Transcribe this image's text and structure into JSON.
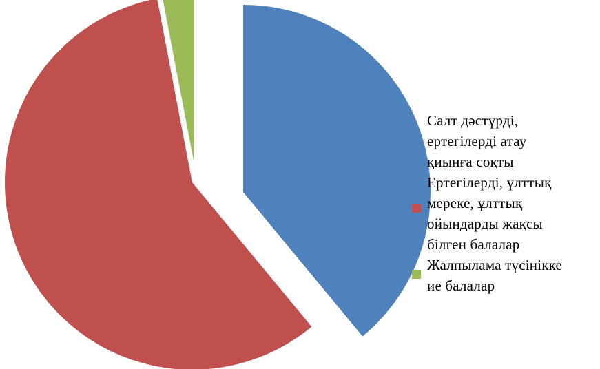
{
  "chart_data": {
    "type": "pie",
    "title": "",
    "exploded": true,
    "legend_position": "right",
    "series": [
      {
        "values": [
          39,
          58,
          3
        ],
        "categories": [
          "Салт дәстүрді, ертегілерді атау қиынға соқты",
          "Ертегілерді, ұлттық мереке, ұлттық ойындарды жақсы білген балалар",
          "Жалпылама түсінікке ие балалар"
        ]
      }
    ],
    "colors": [
      "#4F81BD",
      "#C0504D",
      "#9BBB59"
    ]
  },
  "legend": {
    "items": [
      {
        "lines": [
          "Салт дәстүрді,",
          "ертегілерді атау",
          "қиынға соқты"
        ],
        "color": "#4F81BD"
      },
      {
        "lines": [
          "Ертегілерді, ұлттық",
          "мереке, ұлттық",
          "ойындарды жақсы",
          "білген балалар"
        ],
        "color": "#C0504D"
      },
      {
        "lines": [
          "Жалпылама түсінікке",
          "ие балалар"
        ],
        "color": "#9BBB59"
      }
    ]
  }
}
